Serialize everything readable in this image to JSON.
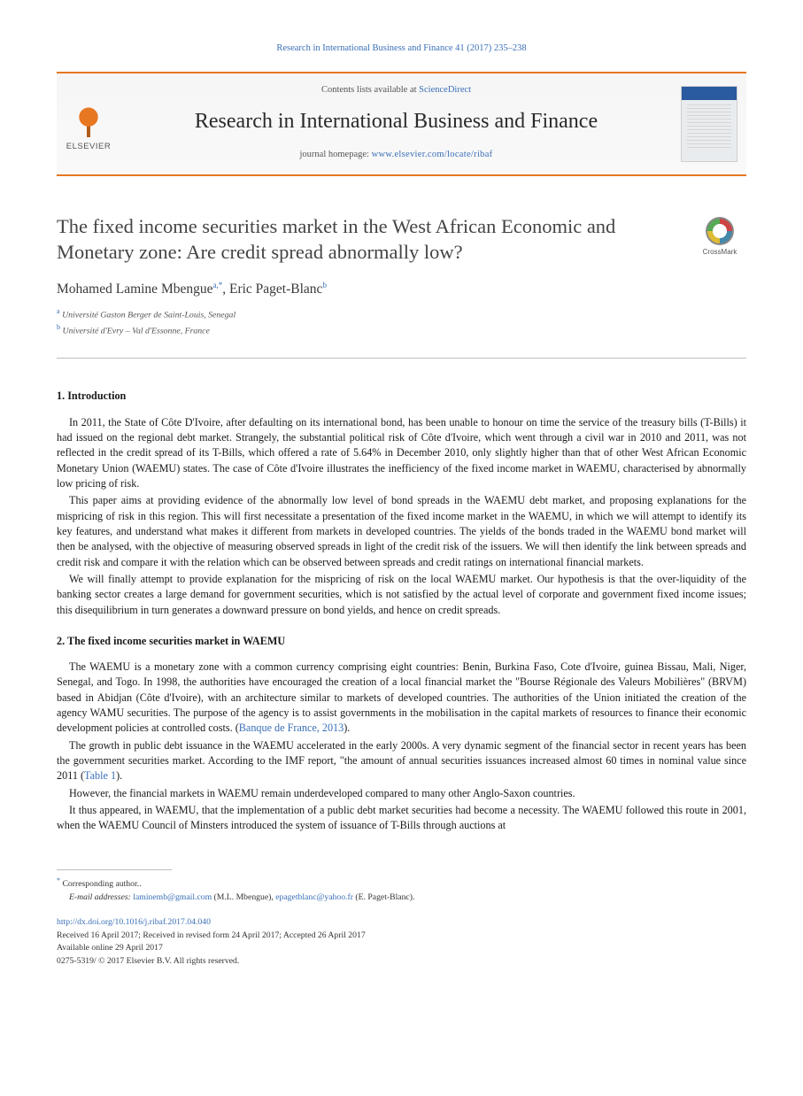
{
  "citation": "Research in International Business and Finance 41 (2017) 235–238",
  "banner": {
    "contents_prefix": "Contents lists available at ",
    "contents_link": "ScienceDirect",
    "journal_name": "Research in International Business and Finance",
    "homepage_prefix": "journal homepage: ",
    "homepage_url": "www.elsevier.com/locate/ribaf",
    "elsevier_label": "ELSEVIER"
  },
  "crossmark_label": "CrossMark",
  "article": {
    "title": "The fixed income securities market in the West African Economic and Monetary zone: Are credit spread abnormally low?",
    "authors_html": "Mohamed Lamine Mbengue<sup>a,</sup><sup>*</sup>, Eric Paget-Blanc<sup>b</sup>",
    "affiliations": [
      {
        "mark": "a",
        "text": "Université Gaston Berger de Saint-Louis, Senegal"
      },
      {
        "mark": "b",
        "text": "Université d'Evry – Val d'Essonne, France"
      }
    ]
  },
  "sections": {
    "s1": {
      "heading": "1. Introduction",
      "paras": [
        "In 2011, the State of Côte D'Ivoire, after defaulting on its international bond, has been unable to honour on time the service of the treasury bills (T-Bills) it had issued on the regional debt market. Strangely, the substantial political risk of Côte d'Ivoire, which went through a civil war in 2010 and 2011, was not reflected in the credit spread of its T-Bills, which offered a rate of 5.64% in December 2010, only slightly higher than that of other West African Economic Monetary Union (WAEMU) states. The case of Côte d'Ivoire illustrates the inefficiency of the fixed income market in WAEMU, characterised by abnormally low pricing of risk.",
        "This paper aims at providing evidence of the abnormally low level of bond spreads in the WAEMU debt market, and proposing explanations for the mispricing of risk in this region. This will first necessitate a presentation of the fixed income market in the WAEMU, in which we will attempt to identify its key features, and understand what makes it different from markets in developed countries. The yields of the bonds traded in the WAEMU bond market will then be analysed, with the objective of measuring observed spreads in light of the credit risk of the issuers. We will then identify the link between spreads and credit risk and compare it with the relation which can be observed between spreads and credit ratings on international financial markets.",
        "We will finally attempt to provide explanation for the mispricing of risk on the local WAEMU market. Our hypothesis is that the over-liquidity of the banking sector creates a large demand for government securities, which is not satisfied by the actual level of corporate and government fixed income issues; this disequilibrium in turn generates a downward pressure on bond yields, and hence on credit spreads."
      ]
    },
    "s2": {
      "heading": "2. The fixed income securities market in WAEMU",
      "paras": [
        "The WAEMU is a monetary zone with a common currency comprising eight countries: Benin, Burkina Faso, Cote d'Ivoire, guinea Bissau, Mali, Niger, Senegal, and Togo. In 1998, the authorities have encouraged the creation of a local financial market the \"Bourse Régionale des Valeurs Mobilières\" (BRVM) based in Abidjan (Côte d'Ivoire), with an architecture similar to markets of developed countries. The authorities of the Union initiated the creation of the agency WAMU securities. The purpose of the agency is to assist governments in the mobilisation in the capital markets of resources to finance their economic development policies at controlled costs. (",
        "The growth in public debt issuance in the WAEMU accelerated in the early 2000s. A very dynamic segment of the financial sector in recent years has been the government securities market. According to the IMF report, \"the amount of annual securities issuances increased almost 60 times in nominal value since 2011 (",
        "However, the financial markets in WAEMU remain underdeveloped compared to many other Anglo-Saxon countries.",
        "It thus appeared, in WAEMU, that the implementation of a public debt market securities had become a necessity. The WAEMU followed this route in 2001, when the WAEMU Council of Minsters introduced the system of issuance of T-Bills through auctions at"
      ],
      "ref1": "Banque de France, 2013",
      "ref1_suffix": ").",
      "ref2": "Table 1",
      "ref2_suffix": ")."
    }
  },
  "footnotes": {
    "corresponding": "Corresponding author..",
    "emails_label": "E-mail addresses:",
    "email1": "laminemb@gmail.com",
    "name1": "(M.L. Mbengue),",
    "email2": "epagetblanc@yahoo.fr",
    "name2": "(E. Paget-Blanc)."
  },
  "doi": {
    "url": "http://dx.doi.org/10.1016/j.ribaf.2017.04.040",
    "history": "Received 16 April 2017; Received in revised form 24 April 2017; Accepted 26 April 2017",
    "available": "Available online 29 April 2017",
    "copyright": "0275-5319/ © 2017 Elsevier B.V. All rights reserved."
  },
  "colors": {
    "link": "#3a6fb7",
    "accent": "#e87722",
    "text": "#1a1a1a",
    "muted": "#555"
  }
}
